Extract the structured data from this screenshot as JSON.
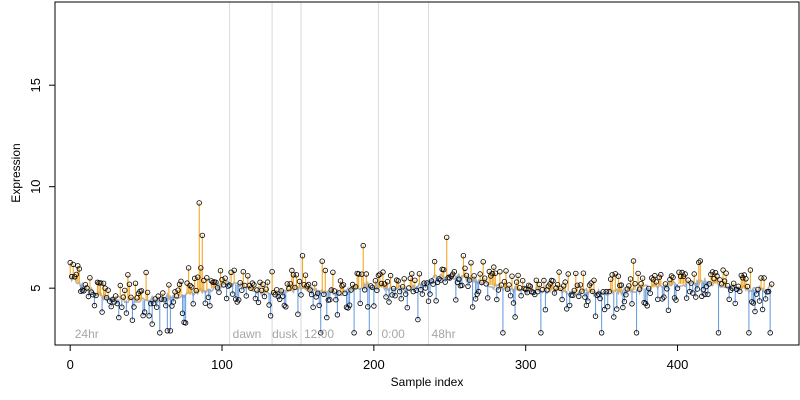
{
  "chart_data": {
    "type": "scatter",
    "title": "",
    "xlabel": "Sample index",
    "ylabel": "Expression",
    "xlim": [
      -10,
      480
    ],
    "ylim": [
      2.2,
      19.1
    ],
    "x_ticks": [
      0,
      100,
      200,
      300,
      400
    ],
    "y_ticks": [
      5,
      10,
      15
    ],
    "x_tick_labels": [
      "0",
      "100",
      "200",
      "300",
      "400"
    ],
    "y_tick_labels": [
      "5",
      "10",
      "15"
    ],
    "grid": false,
    "legend": "none",
    "baseline_description": "grey smoothed trend line; vertical segments connect each point to the trend, orange when above and blue when below",
    "colors": {
      "above": "#f5a623",
      "below": "#6e9fe0",
      "trend": "#b3b3b3",
      "divider": "#d9d9d9",
      "point_stroke": "#000000",
      "region_label": "#a6a6a6"
    },
    "dividers": [
      105,
      133,
      152,
      203,
      236
    ],
    "region_labels": [
      {
        "x": 3,
        "text": "24hr"
      },
      {
        "x": 107,
        "text": "dawn"
      },
      {
        "x": 133,
        "text": "dusk"
      },
      {
        "x": 154,
        "text": "12:00"
      },
      {
        "x": 205,
        "text": "0:00"
      },
      {
        "x": 238,
        "text": "48hr"
      }
    ],
    "trend_anchors": [
      [
        0,
        5.6
      ],
      [
        10,
        5.0
      ],
      [
        20,
        4.6
      ],
      [
        35,
        4.4
      ],
      [
        50,
        4.4
      ],
      [
        70,
        4.6
      ],
      [
        90,
        4.9
      ],
      [
        105,
        5.3
      ],
      [
        120,
        4.9
      ],
      [
        135,
        4.7
      ],
      [
        150,
        5.0
      ],
      [
        165,
        4.8
      ],
      [
        180,
        4.8
      ],
      [
        195,
        5.1
      ],
      [
        210,
        5.0
      ],
      [
        225,
        5.0
      ],
      [
        240,
        5.5
      ],
      [
        255,
        5.6
      ],
      [
        270,
        5.3
      ],
      [
        285,
        5.0
      ],
      [
        300,
        4.9
      ],
      [
        320,
        4.9
      ],
      [
        340,
        4.8
      ],
      [
        360,
        4.8
      ],
      [
        380,
        5.0
      ],
      [
        400,
        5.2
      ],
      [
        420,
        5.3
      ],
      [
        440,
        5.0
      ],
      [
        455,
        4.9
      ],
      [
        462,
        5.0
      ]
    ],
    "highlight_points": [
      {
        "x": 85,
        "y": 9.2
      },
      {
        "x": 87,
        "y": 7.6
      },
      {
        "x": 86,
        "y": 6.0
      },
      {
        "x": 78,
        "y": 6.0
      },
      {
        "x": 153,
        "y": 6.6
      },
      {
        "x": 193,
        "y": 7.1
      },
      {
        "x": 248,
        "y": 7.5
      },
      {
        "x": 259,
        "y": 6.6
      },
      {
        "x": 272,
        "y": 6.3
      },
      {
        "x": 59,
        "y": 2.8
      },
      {
        "x": 64,
        "y": 2.9
      },
      {
        "x": 66,
        "y": 2.9
      },
      {
        "x": 165,
        "y": 2.8
      },
      {
        "x": 187,
        "y": 2.8
      },
      {
        "x": 197,
        "y": 2.8
      },
      {
        "x": 285,
        "y": 2.8
      },
      {
        "x": 310,
        "y": 2.8
      },
      {
        "x": 350,
        "y": 2.8
      },
      {
        "x": 373,
        "y": 2.8
      },
      {
        "x": 427,
        "y": 2.8
      },
      {
        "x": 447,
        "y": 2.8
      },
      {
        "x": 461,
        "y": 2.8
      }
    ],
    "generated_point_count": 465,
    "random_seed": 20240117
  }
}
